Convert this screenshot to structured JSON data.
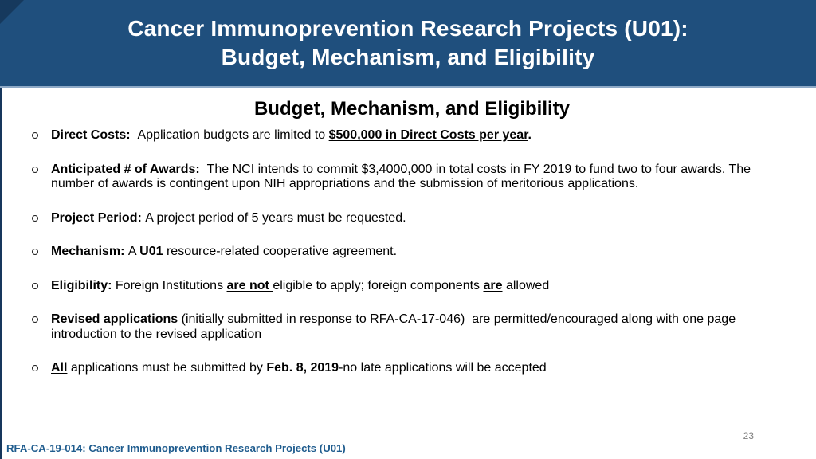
{
  "slide": {
    "header": {
      "title_line1": "Cancer Immunoprevention Research Projects (U01):",
      "title_line2": "Budget, Mechanism, and Eligibility"
    },
    "heading": "Budget, Mechanism, and Eligibility",
    "bullets": [
      {
        "runs": [
          {
            "t": "Direct Costs:  ",
            "b": true
          },
          {
            "t": "Application budgets are limited to "
          },
          {
            "t": "$500,000 in Direct Costs per year",
            "b": true,
            "u": true
          },
          {
            "t": ".",
            "b": true
          }
        ]
      },
      {
        "runs": [
          {
            "t": "Anticipated # of Awards:  ",
            "b": true
          },
          {
            "t": "The NCI intends to commit $3,4000,000 in total costs in FY 2019 to fund "
          },
          {
            "t": "two to four awards",
            "u": true
          },
          {
            "t": ". The number of awards is contingent upon NIH appropriations and the submission of meritorious applications."
          }
        ]
      },
      {
        "runs": [
          {
            "t": "Project Period: ",
            "b": true
          },
          {
            "t": "A project period of 5 years must be requested."
          }
        ]
      },
      {
        "runs": [
          {
            "t": "Mechanism: ",
            "b": true
          },
          {
            "t": "A "
          },
          {
            "t": "U01",
            "b": true,
            "u": true
          },
          {
            "t": " resource-related cooperative agreement."
          }
        ]
      },
      {
        "runs": [
          {
            "t": "Eligibility: ",
            "b": true
          },
          {
            "t": "Foreign Institutions "
          },
          {
            "t": "are not ",
            "b": true,
            "u": true
          },
          {
            "t": "eligible to apply; foreign components "
          },
          {
            "t": "are",
            "b": true,
            "u": true
          },
          {
            "t": " allowed"
          }
        ]
      },
      {
        "runs": [
          {
            "t": "Revised applications ",
            "b": true
          },
          {
            "t": "(initially submitted in response to RFA-CA-17-046)  are permitted/encouraged along with one page introduction to the revised application"
          }
        ]
      },
      {
        "runs": [
          {
            "t": "All",
            "b": true,
            "u": true
          },
          {
            "t": " applications must be submitted by "
          },
          {
            "t": "Feb. 8, 2019",
            "b": true
          },
          {
            "t": "-no late applications will be accepted"
          }
        ]
      }
    ],
    "footer": {
      "text": "RFA-CA-19-014: Cancer Immunoprevention Research Projects (U01)",
      "page_number": "23"
    },
    "colors": {
      "banner": "#1F4F7D",
      "left_edge": "#16365C",
      "separator": "#8EA9C6",
      "footer_text": "#1F5C8E",
      "page_number": "#808080"
    }
  }
}
